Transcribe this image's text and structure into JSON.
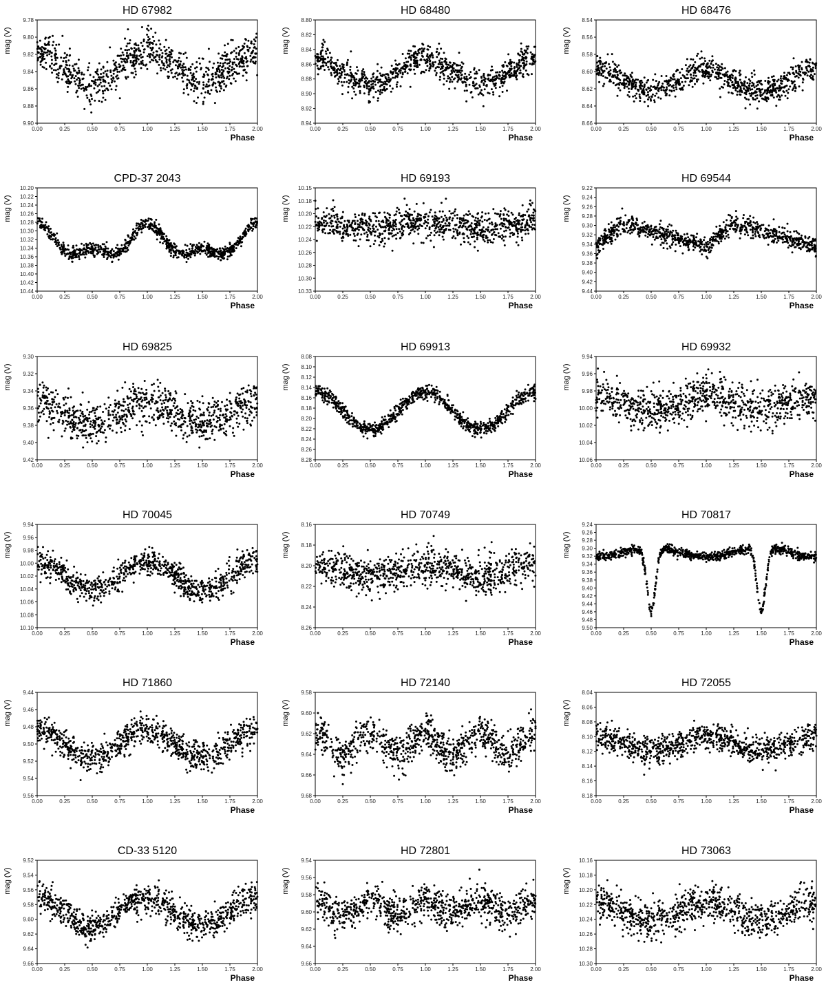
{
  "x_label": "Phase",
  "y_label": "mag (V)",
  "colors": {
    "points": "#000000",
    "frame": "#000000",
    "background": "#ffffff"
  },
  "chart_data": [
    {
      "type": "scatter",
      "title": "HD 67982",
      "xlabel": "Phase",
      "ylabel": "mag (V)",
      "xlim": [
        0,
        2
      ],
      "ylim": [
        9.78,
        9.9
      ],
      "y_inverted": true,
      "grid": false,
      "xticks": [
        "0.00",
        "0.25",
        "0.50",
        "0.75",
        "1.00",
        "1.25",
        "1.50",
        "1.75",
        "2.00"
      ],
      "yticks": [
        "9.78",
        "9.80",
        "9.82",
        "9.84",
        "9.86",
        "9.88",
        "9.90"
      ],
      "series": [
        {
          "model": "wave",
          "mean": 9.835,
          "amplitude": 0.019,
          "cycles_per_unit": 1,
          "phase_of_max_brightness": 0.0,
          "scatter": 0.012
        }
      ]
    },
    {
      "type": "scatter",
      "title": "HD 68480",
      "xlabel": "Phase",
      "ylabel": "mag (V)",
      "xlim": [
        0,
        2
      ],
      "ylim": [
        8.8,
        8.94
      ],
      "y_inverted": true,
      "grid": false,
      "xticks": [
        "0.00",
        "0.25",
        "0.50",
        "0.75",
        "1.00",
        "1.25",
        "1.50",
        "1.75",
        "2.00"
      ],
      "yticks": [
        "8.80",
        "8.82",
        "8.84",
        "8.86",
        "8.88",
        "8.90",
        "8.92",
        "8.94"
      ],
      "series": [
        {
          "model": "wave",
          "mean": 8.87,
          "amplitude": 0.018,
          "cycles_per_unit": 1,
          "phase_of_max_brightness": 0.0,
          "scatter": 0.01
        }
      ]
    },
    {
      "type": "scatter",
      "title": "HD 68476",
      "xlabel": "Phase",
      "ylabel": "mag (V)",
      "xlim": [
        0,
        2
      ],
      "ylim": [
        8.54,
        8.66
      ],
      "y_inverted": true,
      "grid": false,
      "xticks": [
        "0.00",
        "0.25",
        "0.50",
        "0.75",
        "1.00",
        "1.25",
        "1.50",
        "1.75",
        "2.00"
      ],
      "yticks": [
        "8.54",
        "8.56",
        "8.58",
        "8.60",
        "8.62",
        "8.64",
        "8.66"
      ],
      "series": [
        {
          "model": "wave",
          "mean": 8.61,
          "amplitude": 0.014,
          "cycles_per_unit": 1,
          "phase_of_max_brightness": 0.0,
          "scatter": 0.008
        }
      ]
    },
    {
      "type": "scatter",
      "title": "CPD-37 2043",
      "xlabel": "Phase",
      "ylabel": "mag (V)",
      "xlim": [
        0,
        2
      ],
      "ylim": [
        10.2,
        10.44
      ],
      "y_inverted": true,
      "grid": false,
      "xticks": [
        "0.00",
        "0.25",
        "0.50",
        "0.75",
        "1.00",
        "1.25",
        "1.50",
        "1.75",
        "2.00"
      ],
      "yticks": [
        "10.20",
        "10.22",
        "10.24",
        "10.26",
        "10.28",
        "10.30",
        "10.32",
        "10.34",
        "10.36",
        "10.38",
        "10.40",
        "10.42",
        "10.44"
      ],
      "series": [
        {
          "model": "double-wave",
          "mean": 10.33,
          "amplitude": 0.03,
          "amplitude2": 0.018,
          "cycles_per_unit": 1,
          "phase_of_max_brightness": 0.0,
          "scatter": 0.008
        }
      ]
    },
    {
      "type": "scatter",
      "title": "HD 69193",
      "xlabel": "Phase",
      "ylabel": "mag (V)",
      "xlim": [
        0,
        2
      ],
      "ylim": [
        10.15,
        10.33
      ],
      "y_inverted": true,
      "grid": false,
      "xticks": [
        "0.00",
        "0.25",
        "0.50",
        "0.75",
        "1.00",
        "1.25",
        "1.50",
        "1.75",
        "2.00"
      ],
      "yticks": [
        "10.15",
        "10.18",
        "10.20",
        "10.22",
        "10.24",
        "10.26",
        "10.28",
        "10.30",
        "10.33"
      ],
      "series": [
        {
          "model": "wave",
          "mean": 10.215,
          "amplitude": 0.006,
          "cycles_per_unit": 1,
          "phase_of_max_brightness": 0.0,
          "scatter": 0.014
        }
      ]
    },
    {
      "type": "scatter",
      "title": "HD 69544",
      "xlabel": "Phase",
      "ylabel": "mag (V)",
      "xlim": [
        0,
        2
      ],
      "ylim": [
        9.22,
        9.44
      ],
      "y_inverted": true,
      "grid": false,
      "xticks": [
        "0.00",
        "0.25",
        "0.50",
        "0.75",
        "1.00",
        "1.25",
        "1.50",
        "1.75",
        "2.00"
      ],
      "yticks": [
        "9.22",
        "9.24",
        "9.26",
        "9.28",
        "9.30",
        "9.32",
        "9.34",
        "9.36",
        "9.38",
        "9.40",
        "9.42",
        "9.44"
      ],
      "series": [
        {
          "model": "sawtooth",
          "mean": 9.32,
          "amplitude": 0.025,
          "cycles_per_unit": 1,
          "phase_of_max_brightness": 0.0,
          "scatter": 0.01
        }
      ]
    },
    {
      "type": "scatter",
      "title": "HD 69825",
      "xlabel": "Phase",
      "ylabel": "mag (V)",
      "xlim": [
        0,
        2
      ],
      "ylim": [
        9.3,
        9.42
      ],
      "y_inverted": true,
      "grid": false,
      "xticks": [
        "0.00",
        "0.25",
        "0.50",
        "0.75",
        "1.00",
        "1.25",
        "1.50",
        "1.75",
        "2.00"
      ],
      "yticks": [
        "9.30",
        "9.32",
        "9.34",
        "9.36",
        "9.38",
        "9.40",
        "9.42"
      ],
      "series": [
        {
          "model": "wave",
          "mean": 9.365,
          "amplitude": 0.012,
          "cycles_per_unit": 1,
          "phase_of_max_brightness": 0.0,
          "scatter": 0.012
        }
      ]
    },
    {
      "type": "scatter",
      "title": "HD 69913",
      "xlabel": "Phase",
      "ylabel": "mag (V)",
      "xlim": [
        0,
        2
      ],
      "ylim": [
        8.08,
        8.28
      ],
      "y_inverted": true,
      "grid": false,
      "xticks": [
        "0.00",
        "0.25",
        "0.50",
        "0.75",
        "1.00",
        "1.25",
        "1.50",
        "1.75",
        "2.00"
      ],
      "yticks": [
        "8.08",
        "8.10",
        "8.12",
        "8.14",
        "8.16",
        "8.18",
        "8.20",
        "8.22",
        "8.24",
        "8.26",
        "8.28"
      ],
      "series": [
        {
          "model": "wave",
          "mean": 8.185,
          "amplitude": 0.037,
          "cycles_per_unit": 1,
          "phase_of_max_brightness": 0.0,
          "scatter": 0.007
        }
      ]
    },
    {
      "type": "scatter",
      "title": "HD 69932",
      "xlabel": "Phase",
      "ylabel": "mag (V)",
      "xlim": [
        0,
        2
      ],
      "ylim": [
        9.94,
        10.06
      ],
      "y_inverted": true,
      "grid": false,
      "xticks": [
        "0.00",
        "0.25",
        "0.50",
        "0.75",
        "1.00",
        "1.25",
        "1.50",
        "1.75",
        "2.00"
      ],
      "yticks": [
        "9.94",
        "9.96",
        "9.98",
        "10.00",
        "10.02",
        "10.04",
        "10.06"
      ],
      "series": [
        {
          "model": "wave",
          "mean": 9.995,
          "amplitude": 0.008,
          "cycles_per_unit": 1,
          "phase_of_max_brightness": 0.0,
          "scatter": 0.012
        }
      ]
    },
    {
      "type": "scatter",
      "title": "HD 70045",
      "xlabel": "Phase",
      "ylabel": "mag (V)",
      "xlim": [
        0,
        2
      ],
      "ylim": [
        9.94,
        10.1
      ],
      "y_inverted": true,
      "grid": false,
      "xticks": [
        "0.00",
        "0.25",
        "0.50",
        "0.75",
        "1.00",
        "1.25",
        "1.50",
        "1.75",
        "2.00"
      ],
      "yticks": [
        "9.94",
        "9.96",
        "9.98",
        "10.00",
        "10.02",
        "10.04",
        "10.06",
        "10.08",
        "10.10"
      ],
      "series": [
        {
          "model": "wave",
          "mean": 10.02,
          "amplitude": 0.022,
          "cycles_per_unit": 1,
          "phase_of_max_brightness": 0.0,
          "scatter": 0.01
        }
      ]
    },
    {
      "type": "scatter",
      "title": "HD 70749",
      "xlabel": "Phase",
      "ylabel": "mag (V)",
      "xlim": [
        0,
        2
      ],
      "ylim": [
        8.16,
        8.26
      ],
      "y_inverted": true,
      "grid": false,
      "xticks": [
        "0.00",
        "0.25",
        "0.50",
        "0.75",
        "1.00",
        "1.25",
        "1.50",
        "1.75",
        "2.00"
      ],
      "yticks": [
        "8.16",
        "8.18",
        "8.20",
        "8.22",
        "8.24",
        "8.26"
      ],
      "series": [
        {
          "model": "wave",
          "mean": 8.205,
          "amplitude": 0.006,
          "cycles_per_unit": 1,
          "phase_of_max_brightness": 0.0,
          "scatter": 0.009
        }
      ]
    },
    {
      "type": "scatter",
      "title": "HD 70817",
      "xlabel": "Phase",
      "ylabel": "mag (V)",
      "xlim": [
        0,
        2
      ],
      "ylim": [
        9.24,
        9.5
      ],
      "y_inverted": true,
      "grid": false,
      "xticks": [
        "0.00",
        "0.25",
        "0.50",
        "0.75",
        "1.00",
        "1.25",
        "1.50",
        "1.75",
        "2.00"
      ],
      "yticks": [
        "9.24",
        "9.26",
        "9.28",
        "9.30",
        "9.32",
        "9.34",
        "9.36",
        "9.38",
        "9.40",
        "9.42",
        "9.44",
        "9.46",
        "9.48",
        "9.50"
      ],
      "series": [
        {
          "model": "eclipse",
          "mean": 9.31,
          "amplitude": 0.012,
          "eclipse_depth": 0.16,
          "eclipse_width": 0.055,
          "cycles_per_unit": 1,
          "phase_of_max_brightness": 0.5,
          "scatter": 0.006
        }
      ]
    },
    {
      "type": "scatter",
      "title": "HD 71860",
      "xlabel": "Phase",
      "ylabel": "mag (V)",
      "xlim": [
        0,
        2
      ],
      "ylim": [
        9.44,
        9.56
      ],
      "y_inverted": true,
      "grid": false,
      "xticks": [
        "0.00",
        "0.25",
        "0.50",
        "0.75",
        "1.00",
        "1.25",
        "1.50",
        "1.75",
        "2.00"
      ],
      "yticks": [
        "9.44",
        "9.46",
        "9.48",
        "9.50",
        "9.52",
        "9.54",
        "9.56"
      ],
      "series": [
        {
          "model": "wave",
          "mean": 9.5,
          "amplitude": 0.016,
          "cycles_per_unit": 1,
          "phase_of_max_brightness": 0.0,
          "scatter": 0.009
        }
      ]
    },
    {
      "type": "scatter",
      "title": "HD 72140",
      "xlabel": "Phase",
      "ylabel": "mag (V)",
      "xlim": [
        0,
        2
      ],
      "ylim": [
        9.58,
        9.68
      ],
      "y_inverted": true,
      "grid": false,
      "xticks": [
        "0.00",
        "0.25",
        "0.50",
        "0.75",
        "1.00",
        "1.25",
        "1.50",
        "1.75",
        "2.00"
      ],
      "yticks": [
        "9.58",
        "9.60",
        "9.62",
        "9.64",
        "9.66",
        "9.68"
      ],
      "series": [
        {
          "model": "wave",
          "mean": 9.63,
          "amplitude": 0.01,
          "cycles_per_unit": 2,
          "phase_of_max_brightness": 0.0,
          "scatter": 0.009
        }
      ]
    },
    {
      "type": "scatter",
      "title": "HD 72055",
      "xlabel": "Phase",
      "ylabel": "mag (V)",
      "xlim": [
        0,
        2
      ],
      "ylim": [
        8.04,
        8.18
      ],
      "y_inverted": true,
      "grid": false,
      "xticks": [
        "0.00",
        "0.25",
        "0.50",
        "0.75",
        "1.00",
        "1.25",
        "1.50",
        "1.75",
        "2.00"
      ],
      "yticks": [
        "8.04",
        "8.06",
        "8.08",
        "8.10",
        "8.12",
        "8.14",
        "8.16",
        "8.18"
      ],
      "series": [
        {
          "model": "wave",
          "mean": 8.11,
          "amplitude": 0.01,
          "cycles_per_unit": 1,
          "phase_of_max_brightness": 0.0,
          "scatter": 0.009
        }
      ]
    },
    {
      "type": "scatter",
      "title": "CD-33 5120",
      "xlabel": "Phase",
      "ylabel": "mag (V)",
      "xlim": [
        0,
        2
      ],
      "ylim": [
        9.52,
        9.66
      ],
      "y_inverted": true,
      "grid": false,
      "xticks": [
        "0.00",
        "0.25",
        "0.50",
        "0.75",
        "1.00",
        "1.25",
        "1.50",
        "1.75",
        "2.00"
      ],
      "yticks": [
        "9.52",
        "9.54",
        "9.56",
        "9.58",
        "9.60",
        "9.62",
        "9.64",
        "9.66"
      ],
      "series": [
        {
          "model": "wave",
          "mean": 9.59,
          "amplitude": 0.02,
          "cycles_per_unit": 1,
          "phase_of_max_brightness": 0.0,
          "scatter": 0.01
        }
      ]
    },
    {
      "type": "scatter",
      "title": "HD 72801",
      "xlabel": "Phase",
      "ylabel": "mag (V)",
      "xlim": [
        0,
        2
      ],
      "ylim": [
        9.54,
        9.66
      ],
      "y_inverted": true,
      "grid": false,
      "xticks": [
        "0.00",
        "0.25",
        "0.50",
        "0.75",
        "1.00",
        "1.25",
        "1.50",
        "1.75",
        "2.00"
      ],
      "yticks": [
        "9.54",
        "9.56",
        "9.58",
        "9.60",
        "9.62",
        "9.64",
        "9.66"
      ],
      "series": [
        {
          "model": "wave",
          "mean": 9.595,
          "amplitude": 0.008,
          "cycles_per_unit": 2,
          "phase_of_max_brightness": 0.0,
          "scatter": 0.01
        }
      ]
    },
    {
      "type": "scatter",
      "title": "HD 73063",
      "xlabel": "Phase",
      "ylabel": "mag (V)",
      "xlim": [
        0,
        2
      ],
      "ylim": [
        10.16,
        10.3
      ],
      "y_inverted": true,
      "grid": false,
      "xticks": [
        "0.00",
        "0.25",
        "0.50",
        "0.75",
        "1.00",
        "1.25",
        "1.50",
        "1.75",
        "2.00"
      ],
      "yticks": [
        "10.16",
        "10.18",
        "10.20",
        "10.22",
        "10.24",
        "10.26",
        "10.28",
        "10.30"
      ],
      "series": [
        {
          "model": "wave",
          "mean": 10.23,
          "amplitude": 0.012,
          "cycles_per_unit": 1,
          "phase_of_max_brightness": 0.0,
          "scatter": 0.012
        }
      ]
    }
  ]
}
